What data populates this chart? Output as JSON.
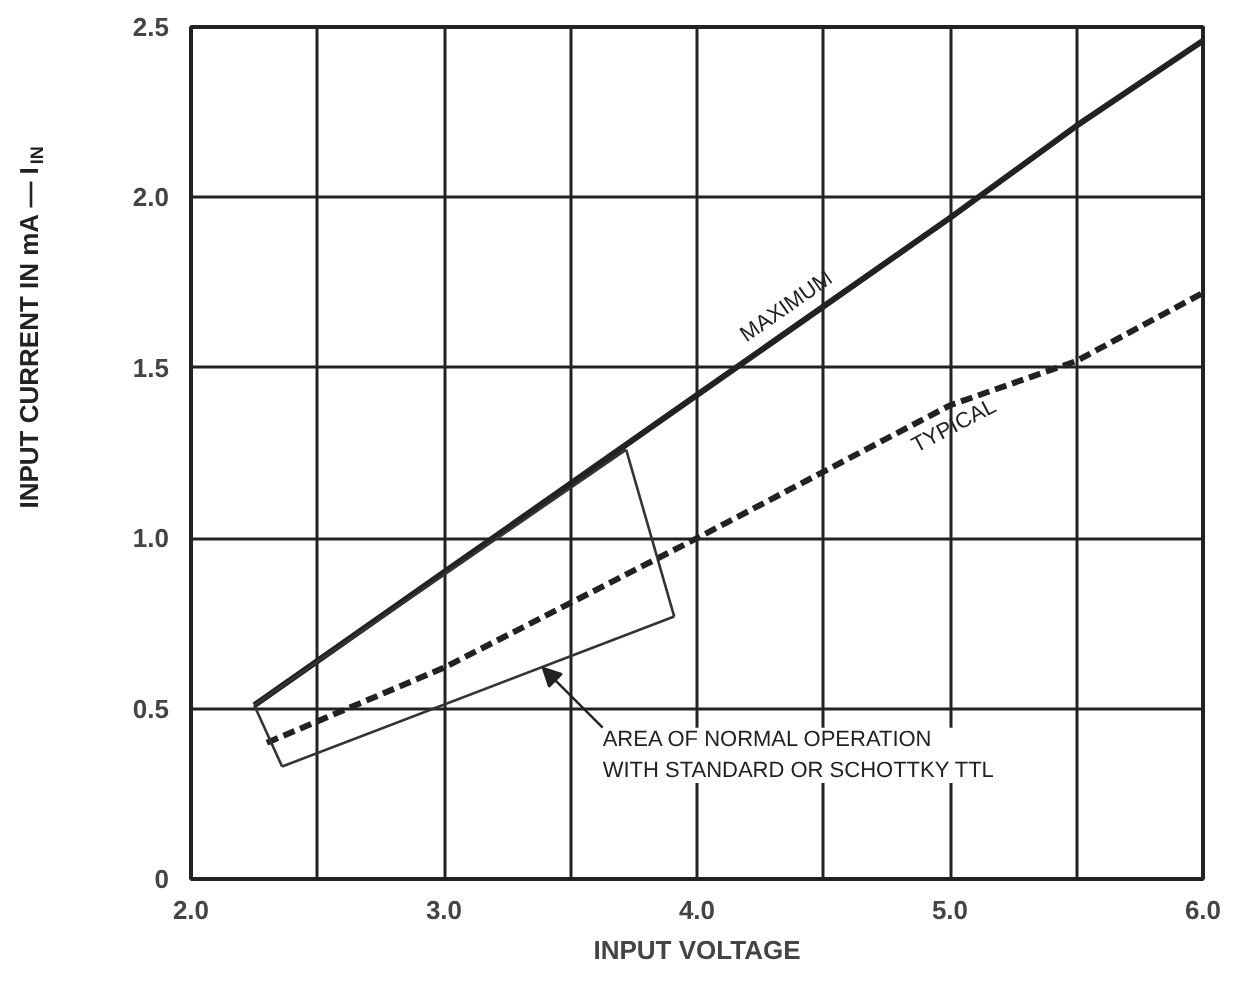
{
  "chart_data": {
    "type": "line",
    "xlabel": "INPUT VOLTAGE",
    "ylabel": "INPUT CURRENT IN mA — I$_{IN}$",
    "xlim": [
      2.0,
      6.0
    ],
    "ylim": [
      0,
      2.5
    ],
    "xticks": [
      {
        "value": 2,
        "label": "2.0"
      },
      {
        "value": 2.5,
        "label": null
      },
      {
        "value": 3,
        "label": "3.0"
      },
      {
        "value": 3.5,
        "label": null
      },
      {
        "value": 4,
        "label": "4.0"
      },
      {
        "value": 4.5,
        "label": null
      },
      {
        "value": 5,
        "label": "5.0"
      },
      {
        "value": 5.5,
        "label": null
      },
      {
        "value": 6,
        "label": "6.0"
      }
    ],
    "yticks": [
      0,
      0.5,
      {
        "value": 1,
        "label": "1.0"
      },
      1.5,
      {
        "value": 2,
        "label": "2.0"
      },
      2.5
    ],
    "grid": true,
    "marker": "none",
    "series": [
      {
        "color": "#222222",
        "line_style": "solid",
        "x": [
          2.25,
          3.0,
          4.0,
          5.0,
          5.5,
          6.0
        ],
        "values": [
          0.51,
          0.9,
          1.42,
          1.94,
          2.21,
          2.46
        ]
      },
      {
        "color": "#222222",
        "line_style": "dashed",
        "x": [
          2.3,
          3.0,
          4.0,
          5.0,
          5.5,
          6.0
        ],
        "values": [
          0.4,
          0.62,
          1.0,
          1.39,
          1.52,
          1.72
        ]
      },
      {
        "color": "#333333",
        "line_style": "solid",
        "x": [
          2.25,
          3.72
        ],
        "values": [
          0.51,
          1.26
        ]
      },
      {
        "color": "#333333",
        "line_style": "solid",
        "x": [
          3.72,
          3.91
        ],
        "values": [
          1.26,
          0.77
        ]
      },
      {
        "color": "#333333",
        "line_style": "solid",
        "x": [
          2.36,
          3.91
        ],
        "values": [
          0.33,
          0.77
        ]
      },
      {
        "color": "#333333",
        "line_style": "solid",
        "x": [
          2.25,
          2.36
        ],
        "values": [
          0.51,
          0.33
        ]
      }
    ],
    "annotations": [
      {
        "text": "MAXIMUM",
        "x": 4.4,
        "y": 1.63
      },
      {
        "text": "TYPICAL",
        "x": 4.98,
        "y": 1.38
      },
      {
        "text": "AREA OF NORMAL OPERATION\nWITH STANDARD OR SCHOTTKY TTL",
        "x": 3.39,
        "y": 0.62
      }
    ]
  }
}
